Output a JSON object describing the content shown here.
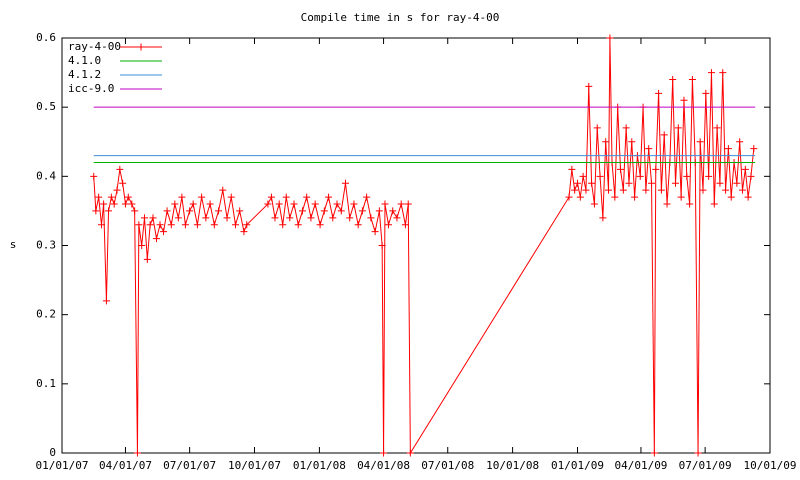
{
  "chart_data": {
    "type": "line",
    "title": "Compile time in s for ray-4-00",
    "y_label": "s",
    "xlim": [
      "2007-01-01",
      "2009-10-01"
    ],
    "xticks": [
      {
        "value": "2007-01-01",
        "label": "01/01/07"
      },
      {
        "value": "2007-04-01",
        "label": "04/01/07"
      },
      {
        "value": "2007-07-01",
        "label": "07/01/07"
      },
      {
        "value": "2007-10-01",
        "label": "10/01/07"
      },
      {
        "value": "2008-01-01",
        "label": "01/01/08"
      },
      {
        "value": "2008-04-01",
        "label": "04/01/08"
      },
      {
        "value": "2008-07-01",
        "label": "07/01/08"
      },
      {
        "value": "2008-10-01",
        "label": "10/01/08"
      },
      {
        "value": "2009-01-01",
        "label": "01/01/09"
      },
      {
        "value": "2009-04-01",
        "label": "04/01/09"
      },
      {
        "value": "2009-07-01",
        "label": "07/01/09"
      },
      {
        "value": "2009-10-01",
        "label": "10/01/09"
      }
    ],
    "ylim": [
      0,
      0.6
    ],
    "yticks": [
      0,
      0.1,
      0.2,
      0.3,
      0.4,
      0.5,
      0.6
    ],
    "legend": "top-left",
    "series": [
      {
        "name": "ray-4-00",
        "color": "#ff0000",
        "markers": true,
        "x": [
          "2007-02-15",
          "2007-02-18",
          "2007-02-22",
          "2007-02-26",
          "2007-03-01",
          "2007-03-05",
          "2007-03-08",
          "2007-03-12",
          "2007-03-16",
          "2007-03-20",
          "2007-03-24",
          "2007-03-28",
          "2007-04-01",
          "2007-04-05",
          "2007-04-10",
          "2007-04-14",
          "2007-04-18",
          "2007-04-20",
          "2007-04-24",
          "2007-04-28",
          "2007-05-02",
          "2007-05-06",
          "2007-05-10",
          "2007-05-15",
          "2007-05-20",
          "2007-05-25",
          "2007-05-30",
          "2007-06-05",
          "2007-06-10",
          "2007-06-15",
          "2007-06-20",
          "2007-06-25",
          "2007-07-01",
          "2007-07-06",
          "2007-07-12",
          "2007-07-18",
          "2007-07-24",
          "2007-07-30",
          "2007-08-05",
          "2007-08-11",
          "2007-08-17",
          "2007-08-23",
          "2007-08-29",
          "2007-09-04",
          "2007-09-10",
          "2007-09-16",
          "2007-09-20",
          "2007-10-20",
          "2007-10-25",
          "2007-10-30",
          "2007-11-05",
          "2007-11-10",
          "2007-11-15",
          "2007-11-20",
          "2007-11-26",
          "2007-12-02",
          "2007-12-08",
          "2007-12-14",
          "2007-12-20",
          "2007-12-26",
          "2008-01-02",
          "2008-01-08",
          "2008-01-14",
          "2008-01-20",
          "2008-01-26",
          "2008-02-01",
          "2008-02-07",
          "2008-02-13",
          "2008-02-19",
          "2008-02-25",
          "2008-03-02",
          "2008-03-08",
          "2008-03-14",
          "2008-03-20",
          "2008-03-26",
          "2008-03-30",
          "2008-04-01",
          "2008-04-03",
          "2008-04-08",
          "2008-04-14",
          "2008-04-20",
          "2008-04-26",
          "2008-05-02",
          "2008-05-06",
          "2008-05-09",
          "2008-12-20",
          "2008-12-24",
          "2008-12-28",
          "2009-01-01",
          "2009-01-05",
          "2009-01-09",
          "2009-01-13",
          "2009-01-17",
          "2009-01-21",
          "2009-01-25",
          "2009-01-29",
          "2009-02-02",
          "2009-02-06",
          "2009-02-10",
          "2009-02-14",
          "2009-02-16",
          "2009-02-19",
          "2009-02-23",
          "2009-02-27",
          "2009-03-03",
          "2009-03-07",
          "2009-03-11",
          "2009-03-15",
          "2009-03-19",
          "2009-03-23",
          "2009-03-27",
          "2009-03-31",
          "2009-04-04",
          "2009-04-08",
          "2009-04-12",
          "2009-04-16",
          "2009-04-20",
          "2009-04-22",
          "2009-04-26",
          "2009-04-30",
          "2009-05-04",
          "2009-05-08",
          "2009-05-12",
          "2009-05-16",
          "2009-05-20",
          "2009-05-24",
          "2009-05-28",
          "2009-06-01",
          "2009-06-05",
          "2009-06-09",
          "2009-06-13",
          "2009-06-17",
          "2009-06-21",
          "2009-06-24",
          "2009-06-28",
          "2009-07-02",
          "2009-07-06",
          "2009-07-10",
          "2009-07-14",
          "2009-07-18",
          "2009-07-22",
          "2009-07-26",
          "2009-07-30",
          "2009-08-03",
          "2009-08-07",
          "2009-08-11",
          "2009-08-15",
          "2009-08-19",
          "2009-08-23",
          "2009-08-27",
          "2009-08-31",
          "2009-09-04",
          "2009-09-08"
        ],
        "values": [
          0.4,
          0.35,
          0.37,
          0.33,
          0.36,
          0.22,
          0.35,
          0.37,
          0.36,
          0.38,
          0.41,
          0.39,
          0.36,
          0.37,
          0.36,
          0.35,
          0,
          0.33,
          0.3,
          0.34,
          0.28,
          0.33,
          0.34,
          0.31,
          0.33,
          0.32,
          0.35,
          0.33,
          0.36,
          0.34,
          0.37,
          0.33,
          0.35,
          0.36,
          0.33,
          0.37,
          0.34,
          0.36,
          0.33,
          0.35,
          0.38,
          0.34,
          0.37,
          0.33,
          0.35,
          0.32,
          0.33,
          0.36,
          0.37,
          0.34,
          0.36,
          0.33,
          0.37,
          0.34,
          0.36,
          0.33,
          0.35,
          0.37,
          0.34,
          0.36,
          0.33,
          0.35,
          0.37,
          0.34,
          0.36,
          0.35,
          0.39,
          0.34,
          0.36,
          0.33,
          0.35,
          0.37,
          0.34,
          0.32,
          0.35,
          0.3,
          0,
          0.36,
          0.33,
          0.35,
          0.34,
          0.36,
          0.33,
          0.36,
          0,
          0.37,
          0.41,
          0.38,
          0.39,
          0.37,
          0.4,
          0.38,
          0.53,
          0.39,
          0.36,
          0.47,
          0.4,
          0.34,
          0.45,
          0.38,
          0.6,
          0.42,
          0.37,
          0.5,
          0.41,
          0.38,
          0.47,
          0.39,
          0.45,
          0.37,
          0.43,
          0.4,
          0.5,
          0.38,
          0.44,
          0.39,
          0,
          0.41,
          0.52,
          0.38,
          0.46,
          0.36,
          0.42,
          0.54,
          0.39,
          0.47,
          0.37,
          0.51,
          0.4,
          0.36,
          0.54,
          0.42,
          0,
          0.45,
          0.38,
          0.52,
          0.4,
          0.55,
          0.36,
          0.47,
          0.39,
          0.55,
          0.38,
          0.44,
          0.37,
          0.42,
          0.39,
          0.45,
          0.38,
          0.41,
          0.37,
          0.4,
          0.44
        ]
      },
      {
        "name": "4.1.0",
        "color": "#00b000",
        "x": [
          "2007-02-15",
          "2009-09-10"
        ],
        "values": [
          0.42,
          0.42
        ]
      },
      {
        "name": "4.1.2",
        "color": "#3a8fd8",
        "x": [
          "2007-02-15",
          "2009-09-10"
        ],
        "values": [
          0.43,
          0.43
        ]
      },
      {
        "name": "icc-9.0",
        "color": "#c000c0",
        "x": [
          "2007-02-15",
          "2009-09-10"
        ],
        "values": [
          0.5,
          0.5
        ]
      }
    ]
  }
}
